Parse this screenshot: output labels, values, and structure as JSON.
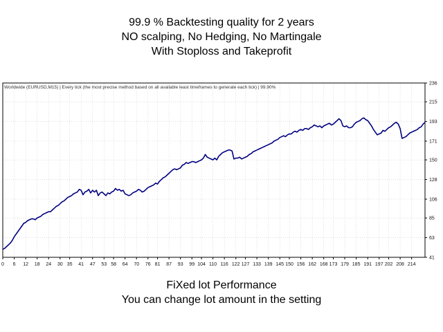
{
  "headline_top": [
    "99.9 % Backtesting quality for 2 years",
    "NO scalping, No Hedging, No Martingale",
    "With Stoploss and Takeprofit"
  ],
  "headline_bottom": [
    "FiXed lot Performance",
    "You can change lot amount in the setting"
  ],
  "colors": {
    "line": "#000080",
    "grid": "#c8c8c8",
    "frame": "#000000"
  },
  "chart_data": {
    "type": "line",
    "info_text": "Worldwide (EURUSD,M15) | Every tick (the most precise method based on all available least timeframes to generate each tick) | 99.90%",
    "x_ticks": [
      "0",
      "6",
      "12",
      "18",
      "24",
      "30",
      "35",
      "41",
      "47",
      "53",
      "58",
      "64",
      "70",
      "76",
      "81",
      "87",
      "93",
      "99",
      "104",
      "110",
      "116",
      "122",
      "127",
      "133",
      "139",
      "145",
      "150",
      "156",
      "162",
      "168",
      "173",
      "179",
      "185",
      "191",
      "197",
      "202",
      "208",
      "214"
    ],
    "y_ticks": [
      "236",
      "215",
      "193",
      "171",
      "150",
      "128",
      "106",
      "85",
      "63",
      "41"
    ],
    "xlim": [
      0,
      221
    ],
    "ylim": [
      41,
      236
    ],
    "grid": true,
    "series": [
      {
        "x": [
          0,
          1,
          2,
          3,
          4,
          5,
          6,
          7,
          8,
          9,
          10,
          11,
          12,
          13,
          14,
          15,
          16,
          17,
          18,
          19,
          20,
          21,
          22,
          23,
          24,
          25,
          26,
          27,
          28,
          29,
          30,
          31,
          32,
          33,
          34,
          35,
          36,
          37,
          38,
          39,
          40,
          41,
          42,
          43,
          44,
          45,
          46,
          47,
          48,
          49,
          50,
          51,
          52,
          53,
          54,
          55,
          56,
          57,
          58,
          59,
          60,
          61,
          62,
          63,
          64,
          65,
          66,
          67,
          68,
          69,
          70,
          71,
          72,
          73,
          74,
          75,
          76,
          77,
          78,
          79,
          80,
          81,
          82,
          83,
          84,
          85,
          86,
          87,
          88,
          89,
          90,
          91,
          92,
          93,
          94,
          95,
          96,
          97,
          98,
          99,
          100,
          101,
          102,
          103,
          104,
          105,
          106,
          107,
          108,
          109,
          110,
          111,
          112,
          113,
          114,
          115,
          116,
          117,
          118,
          119,
          120,
          121,
          122,
          123,
          124,
          125,
          126,
          127,
          128,
          129,
          130,
          131,
          132,
          133,
          134,
          135,
          136,
          137,
          138,
          139,
          140,
          141,
          142,
          143,
          144,
          145,
          146,
          147,
          148,
          149,
          150,
          151,
          152,
          153,
          154,
          155,
          156,
          157,
          158,
          159,
          160,
          161,
          162,
          163,
          164,
          165,
          166,
          167,
          168,
          169,
          170,
          171,
          172,
          173,
          174,
          175,
          176,
          177,
          178,
          179,
          180,
          181,
          182,
          183,
          184,
          185,
          186,
          187,
          188,
          189,
          190,
          191,
          192,
          193,
          194,
          195,
          196,
          197,
          198,
          199,
          200,
          201,
          202,
          203,
          204,
          205,
          206,
          207,
          208,
          209,
          210,
          211,
          212,
          213,
          214,
          215,
          216,
          217,
          218,
          219,
          220,
          221
        ],
        "y": [
          50,
          51,
          53,
          55,
          57,
          60,
          64,
          67,
          70,
          73,
          76,
          79,
          80,
          82,
          83,
          84,
          84,
          83,
          85,
          86,
          87,
          89,
          90,
          91,
          92,
          92,
          94,
          96,
          98,
          99,
          101,
          103,
          104,
          106,
          108,
          109,
          110,
          112,
          113,
          114,
          117,
          116,
          111,
          114,
          115,
          117,
          113,
          116,
          114,
          116,
          110,
          113,
          114,
          112,
          110,
          113,
          112,
          114,
          115,
          118,
          116,
          117,
          115,
          116,
          112,
          111,
          110,
          111,
          113,
          114,
          115,
          117,
          116,
          114,
          115,
          117,
          119,
          120,
          121,
          122,
          124,
          123,
          126,
          128,
          130,
          131,
          133,
          135,
          137,
          139,
          140,
          139,
          140,
          141,
          144,
          145,
          147,
          146,
          147,
          148,
          148,
          147,
          148,
          149,
          150,
          152,
          156,
          153,
          152,
          151,
          150,
          152,
          150,
          154,
          156,
          158,
          159,
          160,
          161,
          161,
          160,
          151,
          152,
          152,
          153,
          151,
          152,
          153,
          154,
          156,
          157,
          159,
          160,
          161,
          162,
          163,
          164,
          165,
          166,
          167,
          168,
          169,
          171,
          172,
          173,
          175,
          176,
          177,
          176,
          178,
          179,
          179,
          181,
          182,
          181,
          183,
          184,
          183,
          185,
          185,
          184,
          186,
          187,
          189,
          188,
          187,
          188,
          186,
          188,
          189,
          190,
          191,
          189,
          190,
          192,
          194,
          196,
          194,
          188,
          187,
          188,
          186,
          186,
          187,
          190,
          192,
          193,
          194,
          196,
          197,
          195,
          194,
          191,
          188,
          184,
          181,
          178,
          179,
          180,
          183,
          182,
          184,
          186,
          187,
          189,
          191,
          192,
          190,
          185,
          174,
          175,
          176,
          178,
          180,
          181,
          182,
          183,
          184,
          186,
          187,
          190,
          192
        ]
      }
    ]
  }
}
